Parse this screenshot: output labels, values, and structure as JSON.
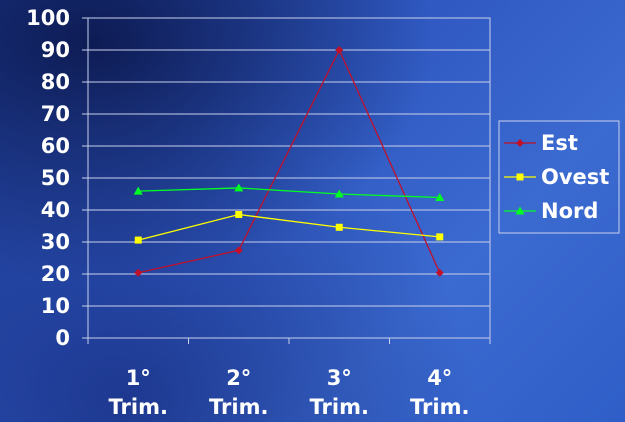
{
  "chart_data": {
    "type": "line",
    "categories": [
      "1° Trim.",
      "2° Trim.",
      "3° Trim.",
      "4° Trim."
    ],
    "category_lines": [
      [
        "1°",
        "Trim."
      ],
      [
        "2°",
        "Trim."
      ],
      [
        "3°",
        "Trim."
      ],
      [
        "4°",
        "Trim."
      ]
    ],
    "series": [
      {
        "name": "Est",
        "values": [
          20.4,
          27.4,
          90,
          20.4
        ],
        "color": "#c0102a",
        "marker": "diamond"
      },
      {
        "name": "Ovest",
        "values": [
          30.6,
          38.6,
          34.6,
          31.6
        ],
        "color": "#ffff00",
        "marker": "square"
      },
      {
        "name": "Nord",
        "values": [
          45.9,
          46.9,
          45,
          43.9
        ],
        "color": "#00ff22",
        "marker": "triangle"
      }
    ],
    "ylim": [
      0,
      100
    ],
    "yticks": [
      0,
      10,
      20,
      30,
      40,
      50,
      60,
      70,
      80,
      90,
      100
    ],
    "title": "",
    "xlabel": "",
    "ylabel": "",
    "grid": true,
    "legend_position": "right"
  }
}
